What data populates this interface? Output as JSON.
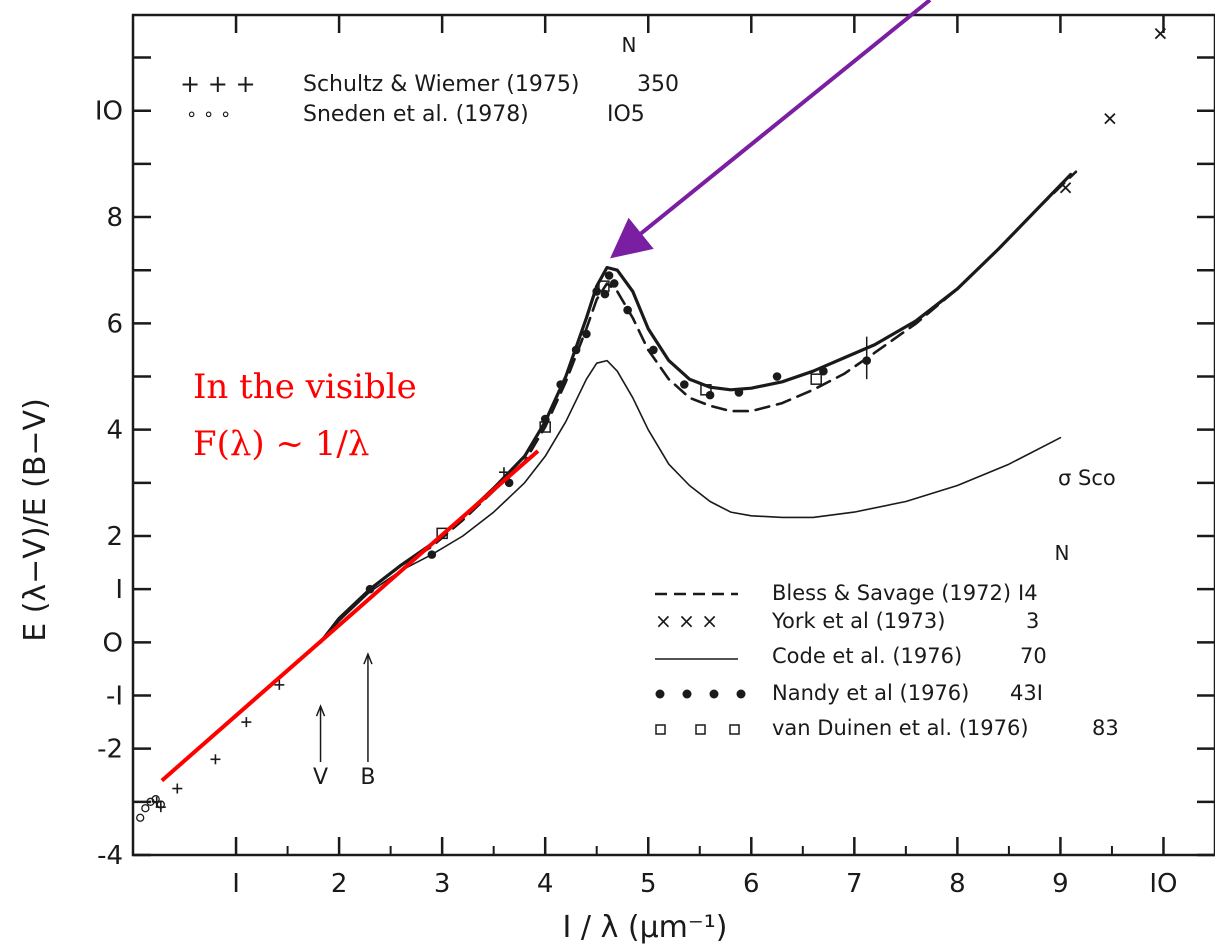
{
  "chart_data": {
    "type": "line",
    "xlabel": "I / λ  (μm⁻¹)",
    "ylabel": "E (λ−V)/E (B−V)",
    "xlim": [
      0,
      10.5
    ],
    "ylim": [
      -4,
      11.8
    ],
    "x_ticks": [
      {
        "value": 1,
        "label": "I"
      },
      {
        "value": 2,
        "label": "2"
      },
      {
        "value": 3,
        "label": "3"
      },
      {
        "value": 4,
        "label": "4"
      },
      {
        "value": 5,
        "label": "5"
      },
      {
        "value": 6,
        "label": "6"
      },
      {
        "value": 7,
        "label": "7"
      },
      {
        "value": 8,
        "label": "8"
      },
      {
        "value": 9,
        "label": "9"
      },
      {
        "value": 10,
        "label": "IO"
      }
    ],
    "y_ticks": [
      {
        "value": -4,
        "label": "-4"
      },
      {
        "value": -2,
        "label": "-2"
      },
      {
        "value": -1,
        "label": "-I"
      },
      {
        "value": 0,
        "label": "O"
      },
      {
        "value": 1,
        "label": "I"
      },
      {
        "value": 2,
        "label": "2"
      },
      {
        "value": 4,
        "label": "4"
      },
      {
        "value": 6,
        "label": "6"
      },
      {
        "value": 8,
        "label": "8"
      },
      {
        "value": 10,
        "label": "IO"
      }
    ],
    "legend_top": [
      {
        "symbols": "+ + +",
        "label": "Schultz & Wiemer (1975)",
        "n": "350"
      },
      {
        "symbols": "∘ ∘ ∘",
        "label": "Sneden et al. (1978)",
        "n": "IO5"
      }
    ],
    "legend_top_n_header": "N",
    "legend_bottom": [
      {
        "symbols": "– – – –",
        "label": "Bless & Savage (1972)",
        "n": "I4"
      },
      {
        "symbols": "× × ×",
        "label": "York et al (1973)",
        "n": "3"
      },
      {
        "symbols": "———",
        "label": "Code et al. (1976)",
        "n": "70"
      },
      {
        "symbols": "● ● ● ●",
        "label": "Nandy et al (1976)",
        "n": "43I"
      },
      {
        "symbols": "□ □ □",
        "label": "van Duinen et al. (1976)",
        "n": "83"
      }
    ],
    "legend_bottom_n_header": "N",
    "annotations": {
      "sigma_sco": "σ Sco",
      "band_v": "V",
      "band_b": "B",
      "visible_line1": "In the visible",
      "visible_line2": "F(λ) ~ 1/λ"
    },
    "series": [
      {
        "name": "Code et al. (1976)",
        "style": "solid-thick",
        "x": [
          1.82,
          2.0,
          2.3,
          2.6,
          2.9,
          3.2,
          3.5,
          3.8,
          4.0,
          4.2,
          4.4,
          4.5,
          4.6,
          4.7,
          4.85,
          5.0,
          5.2,
          5.4,
          5.6,
          5.8,
          6.0,
          6.3,
          6.6,
          6.9,
          7.2,
          7.6,
          8.0,
          8.4,
          8.8,
          9.1
        ],
        "y": [
          0.0,
          0.45,
          1.0,
          1.45,
          1.85,
          2.35,
          2.9,
          3.5,
          4.15,
          5.0,
          6.1,
          6.7,
          7.05,
          7.0,
          6.6,
          5.9,
          5.3,
          4.95,
          4.8,
          4.75,
          4.78,
          4.9,
          5.1,
          5.35,
          5.6,
          6.05,
          6.65,
          7.4,
          8.2,
          8.8
        ]
      },
      {
        "name": "Bless & Savage (1972)",
        "style": "dashed",
        "x": [
          1.82,
          2.0,
          2.3,
          2.6,
          2.9,
          3.2,
          3.5,
          3.8,
          4.0,
          4.2,
          4.4,
          4.5,
          4.6,
          4.7,
          4.85,
          5.0,
          5.2,
          5.4,
          5.6,
          5.8,
          6.0,
          6.3,
          6.6,
          6.9,
          7.2,
          7.6,
          8.0,
          8.4,
          8.8,
          9.15
        ],
        "y": [
          0.0,
          0.45,
          1.0,
          1.45,
          1.8,
          2.3,
          2.85,
          3.4,
          4.05,
          4.9,
          5.9,
          6.45,
          6.75,
          6.6,
          6.1,
          5.5,
          4.95,
          4.6,
          4.45,
          4.35,
          4.35,
          4.5,
          4.75,
          5.05,
          5.45,
          6.0,
          6.65,
          7.4,
          8.2,
          8.85
        ]
      },
      {
        "name": "σ Sco",
        "style": "solid-thin",
        "x": [
          1.82,
          2.0,
          2.3,
          2.6,
          2.9,
          3.2,
          3.5,
          3.8,
          4.0,
          4.2,
          4.4,
          4.5,
          4.6,
          4.7,
          4.85,
          5.0,
          5.2,
          5.4,
          5.6,
          5.8,
          6.0,
          6.3,
          6.6,
          7.0,
          7.5,
          8.0,
          8.5,
          9.0
        ],
        "y": [
          0.0,
          0.4,
          0.95,
          1.35,
          1.65,
          2.0,
          2.45,
          3.0,
          3.5,
          4.15,
          4.95,
          5.25,
          5.3,
          5.1,
          4.6,
          4.0,
          3.35,
          2.95,
          2.65,
          2.45,
          2.38,
          2.35,
          2.35,
          2.45,
          2.65,
          2.95,
          3.35,
          3.85
        ]
      }
    ],
    "points": {
      "schultz_plus": {
        "x": [
          0.23,
          0.27,
          0.43,
          0.8,
          1.1,
          1.42,
          3.6
        ],
        "y": [
          -3.0,
          -3.1,
          -2.75,
          -2.2,
          -1.5,
          -0.8,
          3.2
        ]
      },
      "sneden_circles": {
        "x": [
          0.07,
          0.12,
          0.17,
          0.22,
          0.27
        ],
        "y": [
          -3.3,
          -3.12,
          -3.0,
          -2.95,
          -3.05
        ]
      },
      "york_cross": {
        "x": [
          9.05,
          9.48,
          9.97
        ],
        "y": [
          8.55,
          9.85,
          11.45
        ]
      },
      "nandy_dots": {
        "x": [
          2.3,
          2.9,
          3.65,
          4.0,
          4.15,
          4.3,
          4.4,
          4.5,
          4.58,
          4.62,
          4.67,
          4.8,
          5.05,
          5.35,
          5.6,
          5.88,
          6.25,
          6.7,
          7.12
        ],
        "y": [
          1.0,
          1.65,
          3.0,
          4.2,
          4.85,
          5.5,
          5.8,
          6.6,
          6.55,
          6.9,
          6.75,
          6.25,
          5.5,
          4.85,
          4.65,
          4.7,
          5.0,
          5.1,
          5.3
        ]
      },
      "vanduinen_squares": {
        "x": [
          3.0,
          4.0,
          4.57,
          5.56,
          6.63
        ],
        "y": [
          2.05,
          4.05,
          6.7,
          4.75,
          4.95
        ]
      }
    },
    "error_bar": {
      "x": 7.12,
      "y_low": 4.95,
      "y_high": 5.75
    },
    "fit_line": {
      "x": [
        0.28,
        3.93
      ],
      "y": [
        -2.6,
        3.6
      ]
    },
    "arrow_target": {
      "x": 4.72,
      "y": 7.1
    },
    "band_markers": [
      {
        "label": "V",
        "x": 1.82
      },
      {
        "label": "B",
        "x": 2.28
      }
    ]
  }
}
